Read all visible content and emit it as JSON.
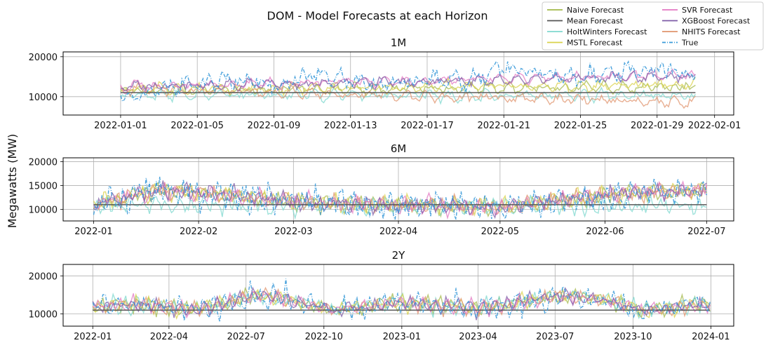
{
  "figure": {
    "suptitle": "DOM - Model Forecasts at each Horizon",
    "ylabel": "Megawatts (MW)"
  },
  "legend": {
    "placement": "top-right",
    "entries": [
      {
        "name": "Naive Forecast",
        "color": "#a3b84a",
        "style": "solid"
      },
      {
        "name": "SVR Forecast",
        "color": "#e377c2",
        "style": "solid"
      },
      {
        "name": "Mean Forecast",
        "color": "#555555",
        "style": "solid"
      },
      {
        "name": "XGBoost Forecast",
        "color": "#7d5ba6",
        "style": "solid"
      },
      {
        "name": "HoltWinters Forecast",
        "color": "#7fd8cf",
        "style": "solid"
      },
      {
        "name": "NHITS Forecast",
        "color": "#e0946d",
        "style": "solid"
      },
      {
        "name": "MSTL Forecast",
        "color": "#d9d24a",
        "style": "solid"
      },
      {
        "name": "True",
        "color": "#3a9ad9",
        "style": "dashdot"
      }
    ]
  },
  "chart_data": [
    {
      "type": "line",
      "title": "1M",
      "grid": true,
      "xlim": [
        "2021-12-29",
        "2022-02-02"
      ],
      "ylim": [
        5400,
        21200
      ],
      "xticks": [
        "2022-01-01",
        "2022-01-05",
        "2022-01-09",
        "2022-01-13",
        "2022-01-17",
        "2022-01-21",
        "2022-01-25",
        "2022-01-29",
        "2022-02-01"
      ],
      "yticks": [
        10000,
        20000
      ],
      "x_range": [
        "2022-01-01",
        "2022-01-31"
      ],
      "series": [
        {
          "name": "True",
          "points": [
            [
              "2022-01-01",
              9200
            ],
            [
              "2022-01-03",
              12000
            ],
            [
              "2022-01-05",
              13500
            ],
            [
              "2022-01-07",
              14500
            ],
            [
              "2022-01-09",
              12500
            ],
            [
              "2022-01-11",
              15500
            ],
            [
              "2022-01-13",
              14000
            ],
            [
              "2022-01-15",
              13000
            ],
            [
              "2022-01-17",
              14500
            ],
            [
              "2022-01-19",
              13500
            ],
            [
              "2022-01-21",
              17500
            ],
            [
              "2022-01-23",
              16000
            ],
            [
              "2022-01-25",
              14500
            ],
            [
              "2022-01-27",
              16500
            ],
            [
              "2022-01-29",
              17000
            ],
            [
              "2022-01-31",
              15500
            ]
          ]
        },
        {
          "name": "Mean Forecast",
          "points": [
            [
              "2022-01-01",
              11000
            ],
            [
              "2022-01-31",
              11000
            ]
          ]
        },
        {
          "name": "Naive Forecast",
          "points": [
            [
              "2022-01-01",
              11500
            ],
            [
              "2022-01-31",
              12500
            ]
          ]
        },
        {
          "name": "HoltWinters Forecast",
          "points": [
            [
              "2022-01-01",
              10500
            ],
            [
              "2022-01-31",
              10200
            ]
          ]
        },
        {
          "name": "MSTL Forecast",
          "points": [
            [
              "2022-01-01",
              11800
            ],
            [
              "2022-01-31",
              13000
            ]
          ]
        },
        {
          "name": "SVR Forecast",
          "points": [
            [
              "2022-01-01",
              12500
            ],
            [
              "2022-01-31",
              15500
            ]
          ]
        },
        {
          "name": "XGBoost Forecast",
          "points": [
            [
              "2022-01-01",
              12500
            ],
            [
              "2022-01-31",
              15000
            ]
          ]
        },
        {
          "name": "NHITS Forecast",
          "points": [
            [
              "2022-01-01",
              12000
            ],
            [
              "2022-01-31",
              8500
            ]
          ]
        }
      ]
    },
    {
      "type": "line",
      "title": "6M",
      "grid": true,
      "xlim": [
        "2021-12-23",
        "2022-07-09"
      ],
      "ylim": [
        7600,
        20800
      ],
      "xticks": [
        "2022-01",
        "2022-02",
        "2022-03",
        "2022-04",
        "2022-05",
        "2022-06",
        "2022-07"
      ],
      "yticks": [
        10000,
        15000,
        20000
      ],
      "x_range": [
        "2022-01-01",
        "2022-07-01"
      ],
      "series": [
        {
          "name": "True",
          "points": [
            [
              "2022-01-01",
              11000
            ],
            [
              "2022-01-20",
              14000
            ],
            [
              "2022-02-10",
              13000
            ],
            [
              "2022-03-05",
              11500
            ],
            [
              "2022-04-01",
              11000
            ],
            [
              "2022-05-01",
              10500
            ],
            [
              "2022-05-25",
              12500
            ],
            [
              "2022-06-10",
              13500
            ],
            [
              "2022-07-01",
              14000
            ]
          ]
        },
        {
          "name": "Mean Forecast",
          "points": [
            [
              "2022-01-01",
              11000
            ],
            [
              "2022-07-01",
              11000
            ]
          ]
        },
        {
          "name": "HoltWinters Forecast",
          "points": [
            [
              "2022-01-01",
              10800
            ],
            [
              "2022-07-01",
              10800
            ]
          ]
        }
      ]
    },
    {
      "type": "line",
      "title": "2Y",
      "grid": true,
      "xlim": [
        "2021-11-27",
        "2024-01-28"
      ],
      "ylim": [
        6800,
        23000
      ],
      "xticks": [
        "2022-01",
        "2022-04",
        "2022-07",
        "2022-10",
        "2023-01",
        "2023-04",
        "2023-07",
        "2023-10",
        "2024-01"
      ],
      "yticks": [
        10000,
        20000
      ],
      "x_range": [
        "2022-01-01",
        "2024-01-01"
      ],
      "series": [
        {
          "name": "True",
          "points": [
            [
              "2022-01-01",
              12000
            ],
            [
              "2022-03-01",
              12500
            ],
            [
              "2022-05-01",
              11000
            ],
            [
              "2022-07-15",
              15000
            ],
            [
              "2022-09-01",
              13000
            ],
            [
              "2022-10-15",
              11000
            ],
            [
              "2023-01-01",
              13000
            ],
            [
              "2023-04-01",
              11500
            ],
            [
              "2023-07-15",
              15000
            ],
            [
              "2023-09-01",
              13500
            ],
            [
              "2023-10-15",
              11000
            ],
            [
              "2024-01-01",
              12500
            ]
          ]
        },
        {
          "name": "Mean Forecast",
          "points": [
            [
              "2022-01-01",
              11000
            ],
            [
              "2024-01-01",
              11000
            ]
          ]
        }
      ]
    }
  ]
}
